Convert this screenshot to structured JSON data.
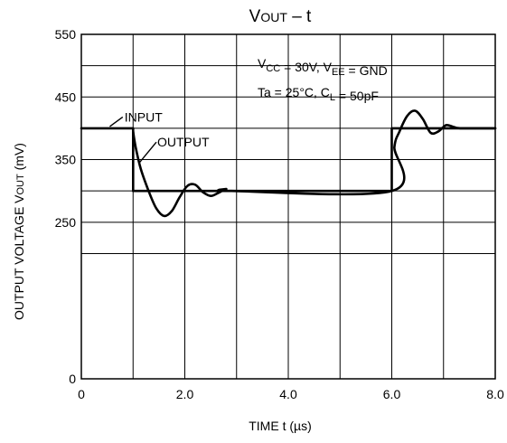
{
  "chart_data": {
    "type": "line",
    "title": {
      "main": "V",
      "sub": "OUT",
      "tail": " – t"
    },
    "xlabel": "TIME   t   (µs)",
    "ylabel": {
      "main": "OUTPUT VOLTAGE   V",
      "sub": "OUT",
      "tail": "   (mV)"
    },
    "xlim": [
      0,
      8
    ],
    "ylim": [
      0,
      550
    ],
    "xticks": [
      {
        "value": 0,
        "label": "0"
      },
      {
        "value": 2,
        "label": "2.0"
      },
      {
        "value": 4,
        "label": "4.0"
      },
      {
        "value": 6,
        "label": "6.0"
      },
      {
        "value": 8,
        "label": "8.0"
      }
    ],
    "yticks": [
      {
        "value": 0,
        "label": "0"
      },
      {
        "value": 250,
        "label": "250"
      },
      {
        "value": 350,
        "label": "350"
      },
      {
        "value": 450,
        "label": "450"
      },
      {
        "value": 550,
        "label": "550"
      }
    ],
    "grid": true,
    "grid_x": [
      1,
      2,
      3,
      4,
      5,
      6,
      7
    ],
    "grid_y": [
      200,
      250,
      300,
      350,
      400,
      450,
      500
    ],
    "annotations": [
      [
        {
          "t": "V"
        },
        {
          "t": "CC",
          "sub": true
        },
        {
          "t": " = 30V,  V"
        },
        {
          "t": "EE",
          "sub": true
        },
        {
          "t": " = GND"
        }
      ],
      [
        {
          "t": "Ta = 25°C,  C"
        },
        {
          "t": "L",
          "sub": true
        },
        {
          "t": " = 50pF"
        }
      ]
    ],
    "series": [
      {
        "name": "INPUT",
        "style": "thick",
        "x": [
          0,
          1.0,
          1.0,
          6.0,
          6.0,
          8.0
        ],
        "y": [
          400,
          400,
          300,
          300,
          400,
          400
        ]
      },
      {
        "name": "OUTPUT",
        "style": "thick",
        "x": [
          1.0,
          1.05,
          1.15,
          1.3,
          1.45,
          1.6,
          1.75,
          1.9,
          2.05,
          2.2,
          2.35,
          2.5,
          2.65,
          2.8,
          2.9,
          6.0,
          6.05,
          6.15,
          6.3,
          6.45,
          6.6,
          6.75,
          6.9,
          7.05,
          7.2,
          7.35,
          8.0
        ],
        "y": [
          395,
          370,
          335,
          300,
          272,
          260,
          268,
          290,
          308,
          310,
          298,
          292,
          297,
          303,
          300,
          300,
          370,
          395,
          420,
          428,
          415,
          393,
          395,
          405,
          402,
          400,
          400
        ]
      }
    ]
  }
}
